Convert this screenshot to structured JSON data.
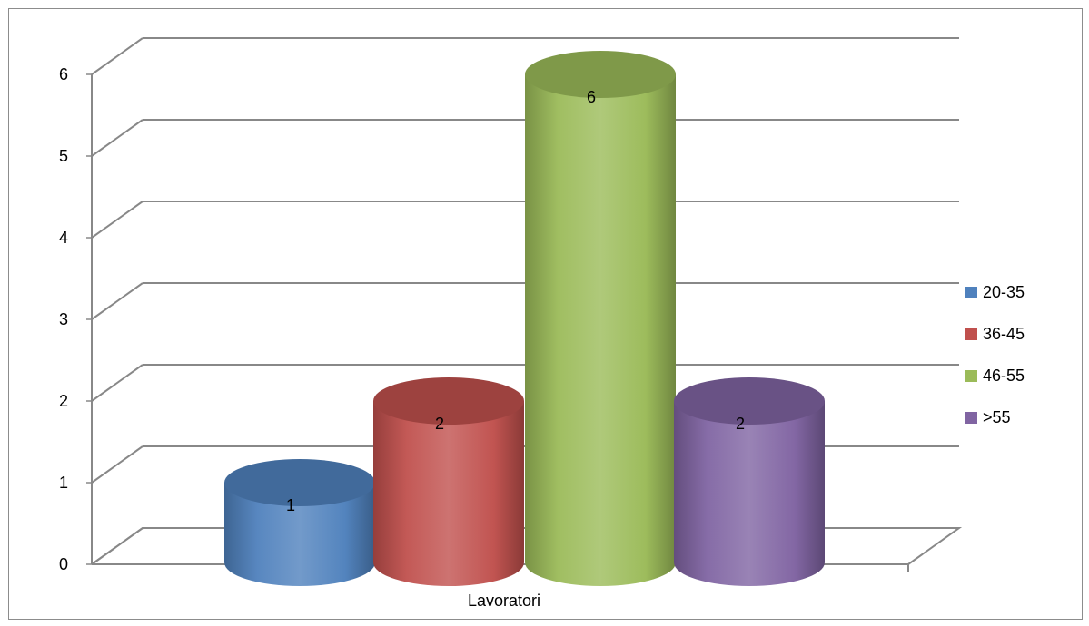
{
  "chart_data": {
    "type": "bar",
    "variant": "3d-cylinder",
    "categories": [
      "Lavoratori"
    ],
    "series": [
      {
        "name": "20-35",
        "values": [
          1
        ],
        "color": "#4F81BD"
      },
      {
        "name": "36-45",
        "values": [
          2
        ],
        "color": "#C0504D"
      },
      {
        "name": "46-55",
        "values": [
          6
        ],
        "color": "#9BBB59"
      },
      {
        "name": ">55",
        "values": [
          2
        ],
        "color": "#8064A2"
      }
    ],
    "ylim": [
      0,
      6
    ],
    "yticks": [
      "0",
      "1",
      "2",
      "3",
      "4",
      "5",
      "6"
    ],
    "grid": true,
    "legend": "right",
    "data_labels": true
  }
}
